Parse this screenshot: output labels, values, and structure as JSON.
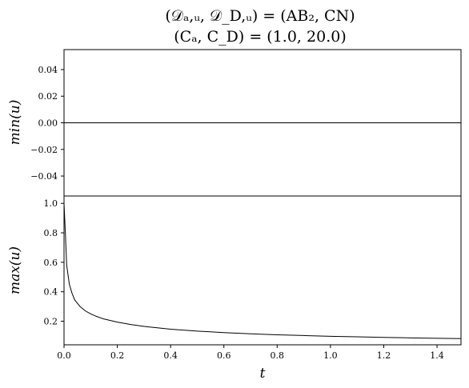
{
  "chart_data": {
    "type": "line",
    "title_lines": [
      "(𝒟ₐ,ᵤ, 𝒟_D,ᵤ) = (AB₂, CN)",
      "(Cₐ, C_D) = (1.0, 20.0)"
    ],
    "xlabel": "t",
    "xlim": [
      0,
      1.49
    ],
    "xticks": [
      "0.0",
      "0.2",
      "0.4",
      "0.6",
      "0.8",
      "1.0",
      "1.2",
      "1.4"
    ],
    "xtick_values": [
      0.0,
      0.2,
      0.4,
      0.6,
      0.8,
      1.0,
      1.2,
      1.4
    ],
    "grid": false,
    "legend": "none",
    "line_color": "#000000",
    "panels": [
      {
        "ylabel": "min(u)",
        "ylim": [
          -0.055,
          0.055
        ],
        "yticks": [
          "0.04",
          "0.02",
          "0.00",
          "−0.02",
          "−0.04"
        ],
        "ytick_values": [
          0.04,
          0.02,
          0.0,
          -0.02,
          -0.04
        ],
        "series": [
          {
            "x": [
              0.0,
              0.02,
              0.05,
              0.1,
              0.2,
              0.4,
              0.6,
              0.8,
              1.0,
              1.2,
              1.4,
              1.49
            ],
            "y": [
              0,
              0,
              0,
              0,
              0,
              0,
              0,
              0,
              0,
              0,
              0,
              0
            ]
          }
        ]
      },
      {
        "ylabel": "max(u)",
        "ylim": [
          0.04,
          1.05
        ],
        "yticks": [
          "1.0",
          "0.8",
          "0.6",
          "0.4",
          "0.2"
        ],
        "ytick_values": [
          1.0,
          0.8,
          0.6,
          0.4,
          0.2
        ],
        "series": [
          {
            "x": [
              0.0,
              0.005,
              0.01,
              0.02,
              0.03,
              0.04,
              0.06,
              0.08,
              0.1,
              0.12,
              0.15,
              0.2,
              0.25,
              0.3,
              0.4,
              0.5,
              0.6,
              0.7,
              0.8,
              0.9,
              1.0,
              1.1,
              1.2,
              1.3,
              1.4,
              1.49
            ],
            "y": [
              1.0,
              0.8,
              0.58,
              0.45,
              0.39,
              0.345,
              0.3,
              0.27,
              0.25,
              0.234,
              0.215,
              0.194,
              0.178,
              0.165,
              0.146,
              0.133,
              0.123,
              0.115,
              0.108,
              0.103,
              0.098,
              0.094,
              0.09,
              0.087,
              0.084,
              0.082
            ]
          }
        ]
      }
    ]
  }
}
